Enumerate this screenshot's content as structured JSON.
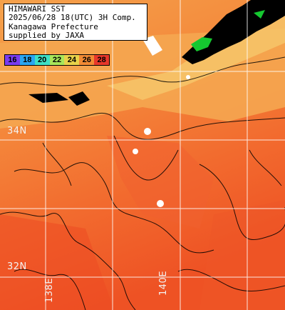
{
  "title": {
    "line1": "HIMAWARI SST",
    "line2": "2025/06/28 18(UTC) 3H Comp.",
    "line3": "Kanagawa Prefecture",
    "line4": "supplied by JAXA"
  },
  "colorbar": {
    "labels": [
      "16",
      "18",
      "20",
      "22",
      "24",
      "26",
      "28"
    ],
    "colors": [
      "#7a3cf0",
      "#2aa6f0",
      "#3ee0c6",
      "#a8e65a",
      "#e8d24a",
      "#f28a34",
      "#e8382a"
    ]
  },
  "grid": {
    "lat_labels": [
      "34N",
      "32N"
    ],
    "lon_labels": [
      "138E",
      "140E"
    ]
  },
  "colors": {
    "land": "#000000",
    "sea_warm": "#f05a28",
    "sea_mid": "#f47a34",
    "sea_cool": "#f59a4a",
    "coast_zone": "#f5c060",
    "grid": "#ffffff"
  }
}
